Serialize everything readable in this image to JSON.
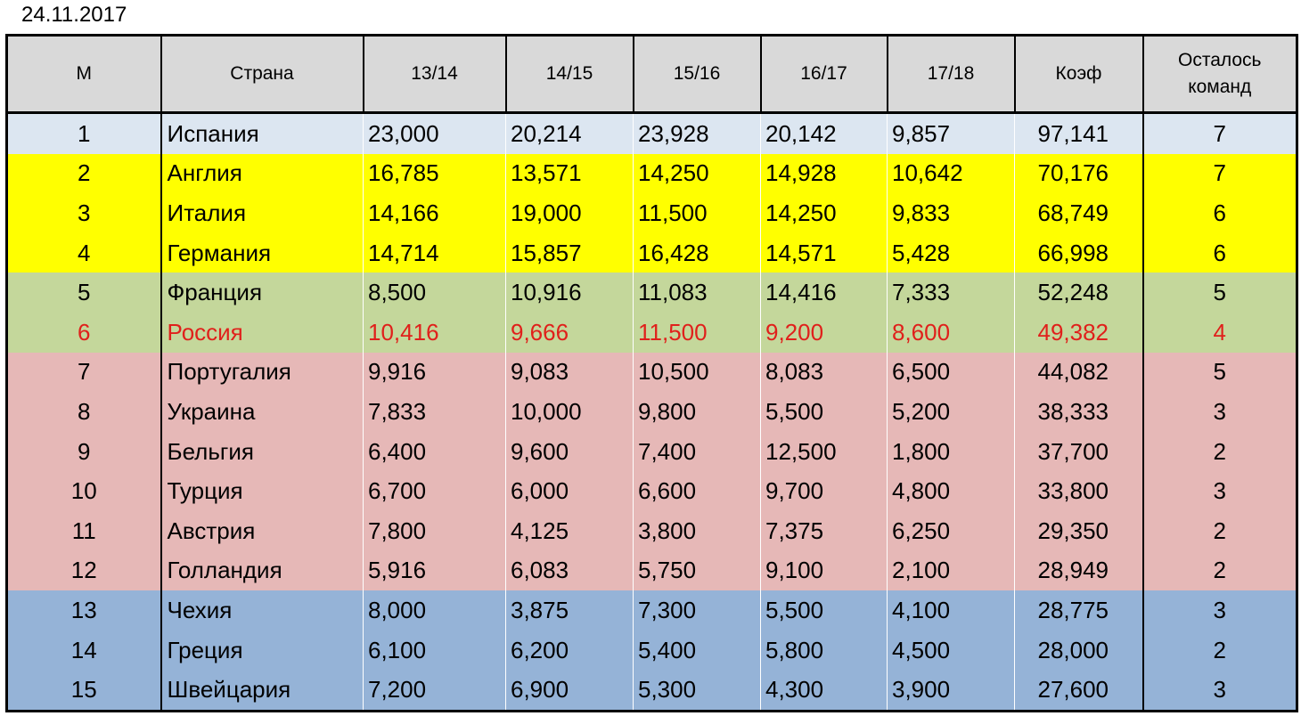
{
  "date": "24.11.2017",
  "headers": {
    "m": "М",
    "country": "Страна",
    "s1": "13/14",
    "s2": "14/15",
    "s3": "15/16",
    "s4": "16/17",
    "s5": "17/18",
    "coef": "Коэф",
    "teams_line1": "Осталось",
    "teams_line2": "команд"
  },
  "colors": {
    "header_bg": "#d9d9d9",
    "row_light_blue": "#dce6f1",
    "row_yellow": "#ffff00",
    "row_green": "#c4d79b",
    "row_pink": "#e6b8b7",
    "row_blue": "#95b3d7",
    "highlight_text_red": "#e0201b"
  },
  "rows": [
    {
      "m": "1",
      "country": "Испания",
      "s1": "23,000",
      "s2": "20,214",
      "s3": "23,928",
      "s4": "20,142",
      "s5": "9,857",
      "coef": "97,141",
      "teams": "7"
    },
    {
      "m": "2",
      "country": "Англия",
      "s1": "16,785",
      "s2": "13,571",
      "s3": "14,250",
      "s4": "14,928",
      "s5": "10,642",
      "coef": "70,176",
      "teams": "7"
    },
    {
      "m": "3",
      "country": "Италия",
      "s1": "14,166",
      "s2": "19,000",
      "s3": "11,500",
      "s4": "14,250",
      "s5": "9,833",
      "coef": "68,749",
      "teams": "6"
    },
    {
      "m": "4",
      "country": "Германия",
      "s1": "14,714",
      "s2": "15,857",
      "s3": "16,428",
      "s4": "14,571",
      "s5": "5,428",
      "coef": "66,998",
      "teams": "6"
    },
    {
      "m": "5",
      "country": "Франция",
      "s1": "8,500",
      "s2": "10,916",
      "s3": "11,083",
      "s4": "14,416",
      "s5": "7,333",
      "coef": "52,248",
      "teams": "5"
    },
    {
      "m": "6",
      "country": "Россия",
      "s1": "10,416",
      "s2": "9,666",
      "s3": "11,500",
      "s4": "9,200",
      "s5": "8,600",
      "coef": "49,382",
      "teams": "4"
    },
    {
      "m": "7",
      "country": "Португалия",
      "s1": "9,916",
      "s2": "9,083",
      "s3": "10,500",
      "s4": "8,083",
      "s5": "6,500",
      "coef": "44,082",
      "teams": "5"
    },
    {
      "m": "8",
      "country": "Украина",
      "s1": "7,833",
      "s2": "10,000",
      "s3": "9,800",
      "s4": "5,500",
      "s5": "5,200",
      "coef": "38,333",
      "teams": "3"
    },
    {
      "m": "9",
      "country": "Бельгия",
      "s1": "6,400",
      "s2": "9,600",
      "s3": "7,400",
      "s4": "12,500",
      "s5": "1,800",
      "coef": "37,700",
      "teams": "2"
    },
    {
      "m": "10",
      "country": "Турция",
      "s1": "6,700",
      "s2": "6,000",
      "s3": "6,600",
      "s4": "9,700",
      "s5": "4,800",
      "coef": "33,800",
      "teams": "3"
    },
    {
      "m": "11",
      "country": "Австрия",
      "s1": "7,800",
      "s2": "4,125",
      "s3": "3,800",
      "s4": "7,375",
      "s5": "6,250",
      "coef": "29,350",
      "teams": "2"
    },
    {
      "m": "12",
      "country": "Голландия",
      "s1": "5,916",
      "s2": "6,083",
      "s3": "5,750",
      "s4": "9,100",
      "s5": "2,100",
      "coef": "28,949",
      "teams": "2"
    },
    {
      "m": "13",
      "country": "Чехия",
      "s1": "8,000",
      "s2": "3,875",
      "s3": "7,300",
      "s4": "5,500",
      "s5": "4,100",
      "coef": "28,775",
      "teams": "3"
    },
    {
      "m": "14",
      "country": "Греция",
      "s1": "6,100",
      "s2": "6,200",
      "s3": "5,400",
      "s4": "5,800",
      "s5": "4,500",
      "coef": "28,000",
      "teams": "2"
    },
    {
      "m": "15",
      "country": "Швейцария",
      "s1": "7,200",
      "s2": "6,900",
      "s3": "5,300",
      "s4": "4,300",
      "s5": "3,900",
      "coef": "27,600",
      "teams": "3"
    }
  ]
}
